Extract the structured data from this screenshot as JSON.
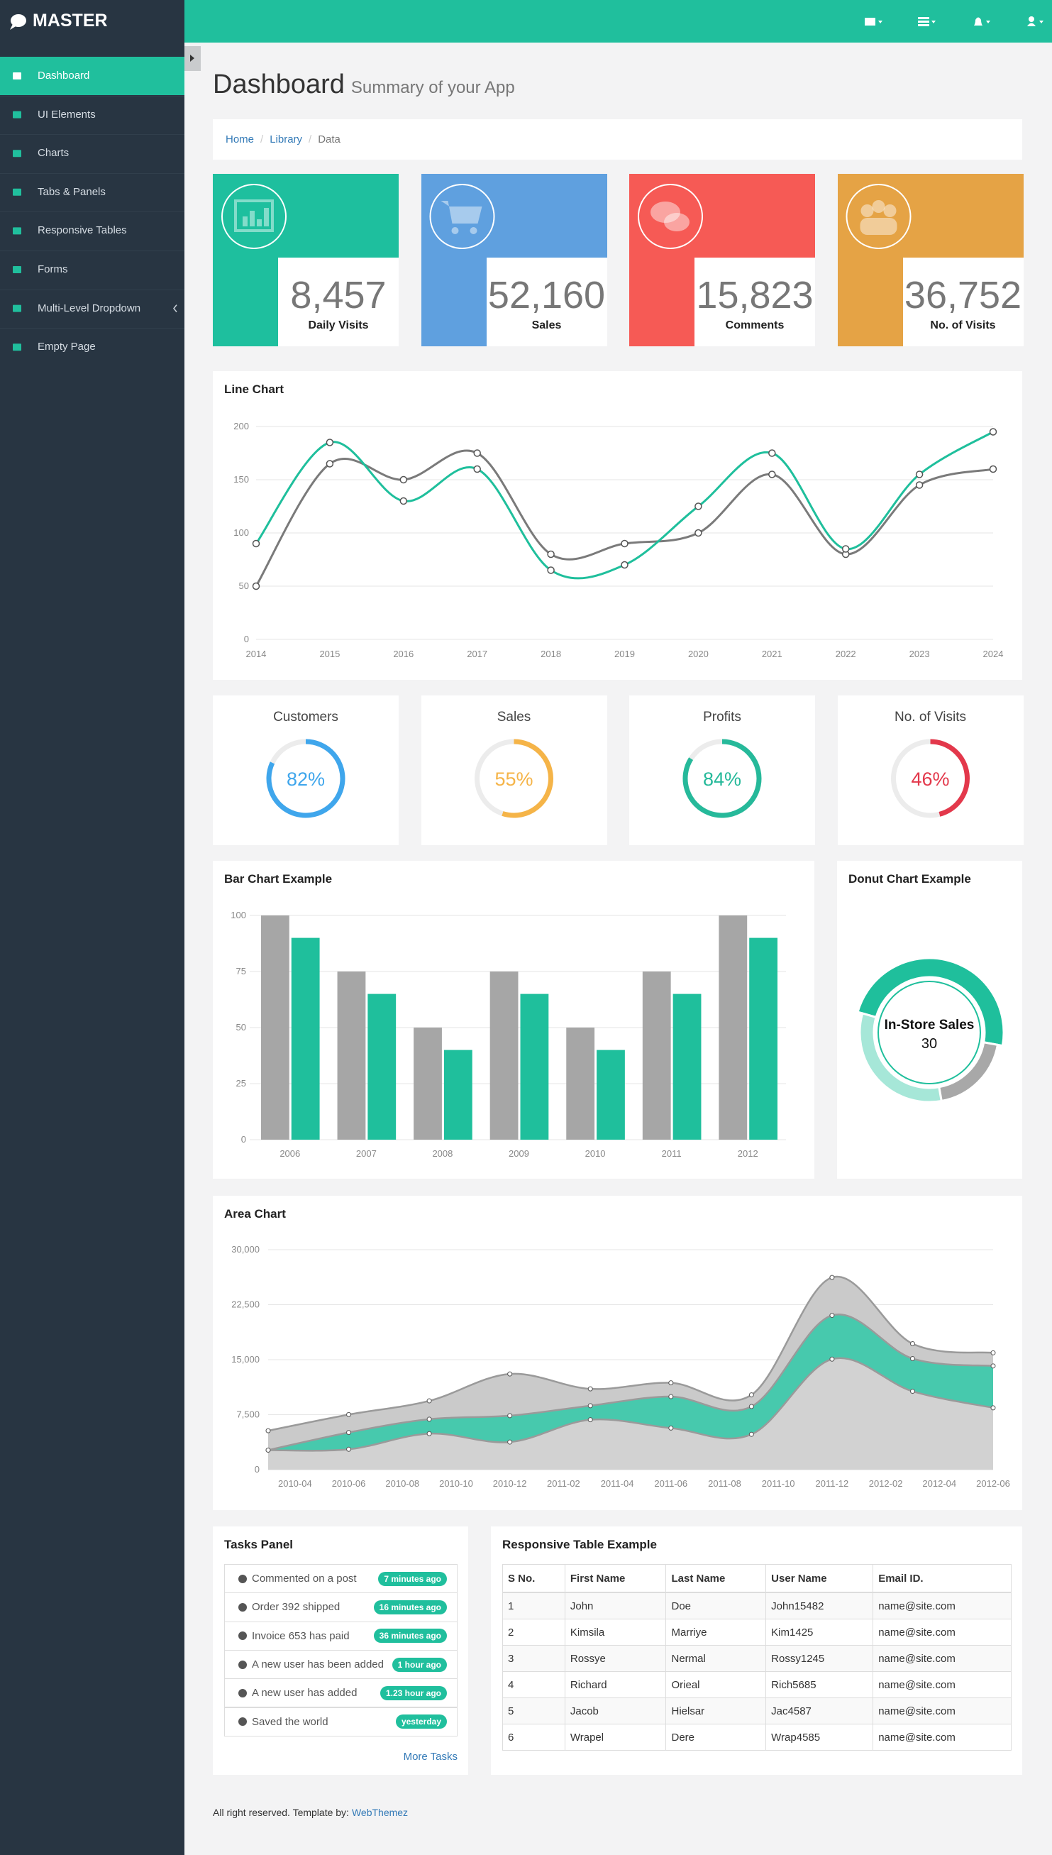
{
  "sidebar": {
    "brand": "MASTER",
    "menu": [
      "Dashboard",
      "UI Elements",
      "Charts",
      "Tabs & Panels",
      "Responsive Tables",
      "Forms",
      "Multi-Level Dropdown",
      "Empty Page"
    ]
  },
  "page": {
    "title": "Dashboard",
    "subtitle": "Summary of your App"
  },
  "breadcrumb": {
    "items": [
      "Home",
      "Library",
      "Data"
    ],
    "separator": "/"
  },
  "stats": [
    {
      "value": "8,457",
      "label": "Daily Visits",
      "color": "#1ebf9e"
    },
    {
      "value": "52,160",
      "label": "Sales",
      "color": "#5fa0df"
    },
    {
      "value": "15,823",
      "label": "Comments",
      "color": "#f65a55"
    },
    {
      "value": "36,752",
      "label": "No. of Visits",
      "color": "#e5a345"
    }
  ],
  "line_chart": {
    "type": "line",
    "title": "Line Chart",
    "categories": [
      "2014",
      "2015",
      "2016",
      "2017",
      "2018",
      "2019",
      "2020",
      "2021",
      "2022",
      "2023",
      "2024"
    ],
    "series": [
      {
        "color": "#7a7a7a",
        "values": [
          50,
          165,
          150,
          175,
          80,
          90,
          100,
          155,
          80,
          145,
          160
        ]
      },
      {
        "color": "#1fbf9c",
        "values": [
          90,
          185,
          130,
          160,
          65,
          70,
          125,
          175,
          85,
          155,
          195
        ]
      }
    ],
    "ylim": [
      0,
      200
    ],
    "yticks": [
      0,
      50,
      100,
      150,
      200
    ],
    "grid": true
  },
  "gauges": {
    "type": "gauge",
    "items": [
      {
        "title": "Customers",
        "value": 82,
        "value_label": "82%",
        "color": "#3fa6ec"
      },
      {
        "title": "Sales",
        "value": 55,
        "value_label": "55%",
        "color": "#f5b448"
      },
      {
        "title": "Profits",
        "value": 84,
        "value_label": "84%",
        "color": "#26b99a"
      },
      {
        "title": "No. of Visits",
        "value": 46,
        "value_label": "46%",
        "color": "#e3384b"
      }
    ]
  },
  "bar_chart": {
    "type": "bar",
    "title": "Bar Chart Example",
    "categories": [
      "2006",
      "2007",
      "2008",
      "2009",
      "2010",
      "2011",
      "2012"
    ],
    "series": [
      {
        "color": "#a6a6a6",
        "values": [
          100,
          75,
          50,
          75,
          50,
          75,
          100
        ]
      },
      {
        "color": "#1fbf9c",
        "values": [
          90,
          65,
          40,
          65,
          40,
          65,
          90
        ]
      }
    ],
    "ylim": [
      0,
      100
    ],
    "yticks": [
      0,
      25,
      50,
      75,
      100
    ],
    "grid": true
  },
  "donut_chart": {
    "type": "donut",
    "title": "Donut Chart Example",
    "labels": [
      "In-Store Sales",
      null,
      null
    ],
    "values": [
      30,
      12,
      20
    ],
    "colors": [
      "#1fbf9c",
      "#a8a8a8",
      "#a6e7d8"
    ]
  },
  "area_chart": {
    "type": "area",
    "title": "Area Chart",
    "stacked": true,
    "x": [
      "2010-03",
      "2010-06",
      "2010-09",
      "2010-12",
      "2011-03",
      "2011-06",
      "2011-09",
      "2011-12",
      "2012-03",
      "2012-06"
    ],
    "series": [
      {
        "color": "#d2d2d2",
        "values": [
          2666,
          2778,
          4912,
          3767,
          6810,
          5670,
          4820,
          15073,
          10687,
          8432
        ]
      },
      {
        "color": "#47c9ad",
        "values": [
          0,
          2294,
          1969,
          3597,
          1914,
          4293,
          3795,
          5967,
          4460,
          5713
        ]
      },
      {
        "color": "#cacaca",
        "values": [
          2647,
          2441,
          2501,
          5689,
          2293,
          1881,
          1588,
          5175,
          2028,
          1791
        ]
      }
    ],
    "xlim": [
      "2010-03",
      "2012-06"
    ],
    "xticks": [
      "2010-04",
      "2010-06",
      "2010-08",
      "2010-10",
      "2010-12",
      "2011-02",
      "2011-04",
      "2011-06",
      "2011-08",
      "2011-10",
      "2011-12",
      "2012-02",
      "2012-04",
      "2012-06"
    ],
    "ylim": [
      0,
      30000
    ],
    "yticks": [
      0,
      {
        "value": 7500,
        "label": "7,500"
      },
      {
        "value": 15000,
        "label": "15,000"
      },
      {
        "value": 22500,
        "label": "22,500"
      },
      {
        "value": 30000,
        "label": "30,000"
      }
    ],
    "grid": true
  },
  "tasks": {
    "title": "Tasks Panel",
    "items": [
      {
        "text": "Commented on a post",
        "time": "7 minutes ago"
      },
      {
        "text": "Order 392 shipped",
        "time": "16 minutes ago"
      },
      {
        "text": "Invoice 653 has paid",
        "time": "36 minutes ago"
      },
      {
        "text": "A new user has been added",
        "time": "1 hour ago"
      },
      {
        "text": "A new user has added",
        "time": "1.23 hour ago"
      },
      {
        "text": "Saved the world",
        "time": "yesterday"
      }
    ],
    "more": "More Tasks"
  },
  "table": {
    "title": "Responsive Table Example",
    "columns": [
      "S No.",
      "First Name",
      "Last Name",
      "User Name",
      "Email ID."
    ],
    "rows": [
      [
        "1",
        "John",
        "Doe",
        "John15482",
        "name@site.com"
      ],
      [
        "2",
        "Kimsila",
        "Marriye",
        "Kim1425",
        "name@site.com"
      ],
      [
        "3",
        "Rossye",
        "Nermal",
        "Rossy1245",
        "name@site.com"
      ],
      [
        "4",
        "Richard",
        "Orieal",
        "Rich5685",
        "name@site.com"
      ],
      [
        "5",
        "Jacob",
        "Hielsar",
        "Jac4587",
        "name@site.com"
      ],
      [
        "6",
        "Wrapel",
        "Dere",
        "Wrap4585",
        "name@site.com"
      ]
    ]
  },
  "footer": {
    "text": "All right reserved. Template by:",
    "link": "WebThemez"
  }
}
